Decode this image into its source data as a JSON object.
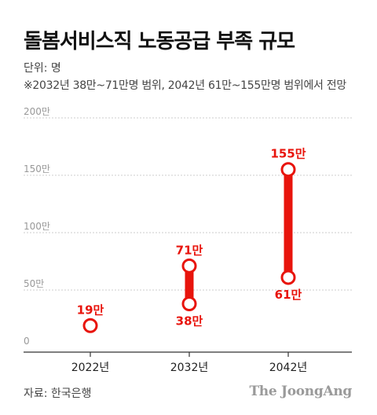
{
  "header": {
    "title": "돌봄서비스직 노동공급 부족 규모",
    "unit": "단위: 명",
    "note": "※2032년 38만~71만명 범위, 2042년 61만~155만명 범위에서 전망"
  },
  "footer": {
    "source": "자료: 한국은행",
    "logo": "The JoongAng"
  },
  "colors": {
    "accent": "#e8140c",
    "grid": "#cccccc",
    "axis": "#333333",
    "tick_text": "#999999"
  },
  "chart_data": {
    "type": "range",
    "title": "돌봄서비스직 노동공급 부족 규모",
    "unit": "만",
    "ylim": [
      0,
      200
    ],
    "yticks": [
      {
        "value": 0,
        "label": "0"
      },
      {
        "value": 50,
        "label": "50만"
      },
      {
        "value": 100,
        "label": "100만"
      },
      {
        "value": 150,
        "label": "150만"
      },
      {
        "value": 200,
        "label": "200만"
      }
    ],
    "categories": [
      "2022년",
      "2032년",
      "2042년"
    ],
    "series": [
      {
        "category": "2022년",
        "low": 19,
        "high": 19,
        "low_label": "19만",
        "high_label": "19만"
      },
      {
        "category": "2032년",
        "low": 38,
        "high": 71,
        "low_label": "38만",
        "high_label": "71만"
      },
      {
        "category": "2042년",
        "low": 61,
        "high": 155,
        "low_label": "61만",
        "high_label": "155만"
      }
    ],
    "grid": true
  }
}
